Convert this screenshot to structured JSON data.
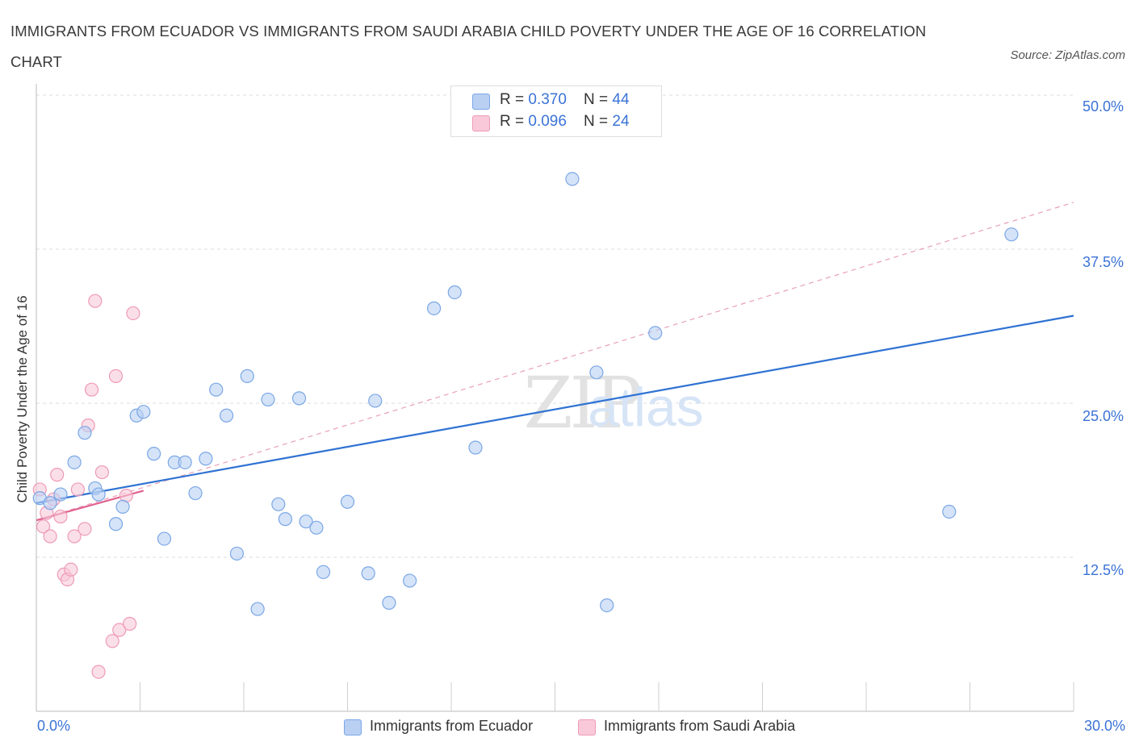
{
  "header": {
    "title": "IMMIGRANTS FROM ECUADOR VS IMMIGRANTS FROM SAUDI ARABIA CHILD POVERTY UNDER THE AGE OF 16 CORRELATION CHART",
    "source": "Source: ZipAtlas.com"
  },
  "watermark": {
    "zip": "ZIP",
    "atlas": "atlas"
  },
  "legend_top": {
    "rows": [
      {
        "r_label": "R = ",
        "r_value": "0.370",
        "n_label": "N = ",
        "n_value": "44"
      },
      {
        "r_label": "R = ",
        "r_value": "0.096",
        "n_label": "N = ",
        "n_value": "24"
      }
    ]
  },
  "chart_data": {
    "type": "scatter",
    "title": "IMMIGRANTS FROM ECUADOR VS IMMIGRANTS FROM SAUDI ARABIA CHILD POVERTY UNDER THE AGE OF 16 CORRELATION CHART",
    "xlabel": "",
    "ylabel": "Child Poverty Under the Age of 16",
    "xlim": [
      0,
      30
    ],
    "ylim": [
      0,
      50
    ],
    "x_tick_labels": [
      "0.0%",
      "30.0%"
    ],
    "y_ticks": [
      12.5,
      25.0,
      37.5,
      50.0
    ],
    "y_tick_labels": [
      "12.5%",
      "25.0%",
      "37.5%",
      "50.0%"
    ],
    "grid": true,
    "legend_position": "bottom",
    "series": [
      {
        "name": "Immigrants from Ecuador",
        "color": "#7aa7e6",
        "fill": "#b9d0f3",
        "R": 0.37,
        "N": 44,
        "trend": {
          "x": [
            0,
            30
          ],
          "y": [
            16.9,
            32.1
          ],
          "style": "solid",
          "color": "#2f72d3"
        },
        "points": [
          [
            0.1,
            17.3
          ],
          [
            0.4,
            16.9
          ],
          [
            0.7,
            17.6
          ],
          [
            1.1,
            20.2
          ],
          [
            1.4,
            22.6
          ],
          [
            1.7,
            18.1
          ],
          [
            1.8,
            17.6
          ],
          [
            2.3,
            15.2
          ],
          [
            2.5,
            16.6
          ],
          [
            2.9,
            24.0
          ],
          [
            3.1,
            24.3
          ],
          [
            3.4,
            20.9
          ],
          [
            3.7,
            14.0
          ],
          [
            4.0,
            20.2
          ],
          [
            4.3,
            20.2
          ],
          [
            4.6,
            17.7
          ],
          [
            4.9,
            20.5
          ],
          [
            5.2,
            26.1
          ],
          [
            5.5,
            24.0
          ],
          [
            5.8,
            12.8
          ],
          [
            6.1,
            27.2
          ],
          [
            6.4,
            8.3
          ],
          [
            6.7,
            25.3
          ],
          [
            7.0,
            16.8
          ],
          [
            7.2,
            15.6
          ],
          [
            7.6,
            25.4
          ],
          [
            7.8,
            15.4
          ],
          [
            8.1,
            14.9
          ],
          [
            8.3,
            11.3
          ],
          [
            9.0,
            17.0
          ],
          [
            9.6,
            11.2
          ],
          [
            9.8,
            25.2
          ],
          [
            10.2,
            8.8
          ],
          [
            10.8,
            10.6
          ],
          [
            11.5,
            32.7
          ],
          [
            12.1,
            34.0
          ],
          [
            12.7,
            21.4
          ],
          [
            15.1,
            47.2
          ],
          [
            15.5,
            43.2
          ],
          [
            16.2,
            27.5
          ],
          [
            16.5,
            8.6
          ],
          [
            17.9,
            30.7
          ],
          [
            26.4,
            16.2
          ],
          [
            28.2,
            38.7
          ]
        ]
      },
      {
        "name": "Immigrants from Saudi Arabia",
        "color": "#ee9ab8",
        "fill": "#f9c9d9",
        "R": 0.096,
        "N": 24,
        "trend": {
          "x": [
            0,
            3.1
          ],
          "y": [
            15.5,
            17.9
          ],
          "style": "solid",
          "color": "#e0608f"
        },
        "trend_extended": {
          "x": [
            0,
            30
          ],
          "y": [
            15.5,
            41.3
          ],
          "style": "dashed",
          "color": "#e8a0b8"
        },
        "points": [
          [
            0.1,
            18.0
          ],
          [
            0.2,
            15.0
          ],
          [
            0.3,
            16.1
          ],
          [
            0.4,
            14.2
          ],
          [
            0.5,
            17.2
          ],
          [
            0.6,
            19.2
          ],
          [
            0.7,
            15.8
          ],
          [
            0.8,
            11.1
          ],
          [
            0.9,
            10.7
          ],
          [
            1.0,
            11.5
          ],
          [
            1.1,
            14.2
          ],
          [
            1.2,
            18.0
          ],
          [
            1.4,
            14.8
          ],
          [
            1.5,
            23.2
          ],
          [
            1.6,
            26.1
          ],
          [
            1.7,
            33.3
          ],
          [
            1.8,
            3.2
          ],
          [
            1.9,
            19.4
          ],
          [
            2.2,
            5.7
          ],
          [
            2.3,
            27.2
          ],
          [
            2.4,
            6.6
          ],
          [
            2.6,
            17.5
          ],
          [
            2.7,
            7.1
          ],
          [
            2.8,
            32.3
          ]
        ]
      }
    ]
  },
  "bottom_legend": {
    "items": [
      {
        "label": "Immigrants from Ecuador"
      },
      {
        "label": "Immigrants from Saudi Arabia"
      }
    ]
  }
}
